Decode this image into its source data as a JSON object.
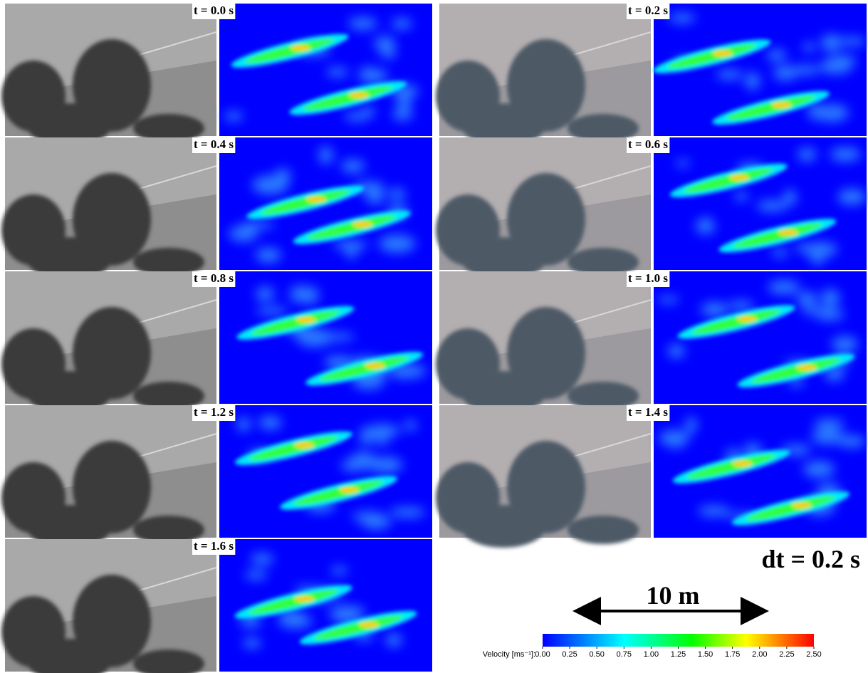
{
  "panels": [
    {
      "label": "t = 0.0 s"
    },
    {
      "label": "t = 0.2 s"
    },
    {
      "label": "t = 0.4 s"
    },
    {
      "label": "t = 0.6 s"
    },
    {
      "label": "t = 0.8 s"
    },
    {
      "label": "t = 1.0 s"
    },
    {
      "label": "t = 1.2 s"
    },
    {
      "label": "t = 1.4 s"
    },
    {
      "label": "t = 1.6 s"
    }
  ],
  "time_step": "dt = 0.2 s",
  "scale_bar": "10 m",
  "colorbar": {
    "label": "Velocity [ms⁻¹]:",
    "lim": [
      0,
      2.5
    ],
    "ticks": [
      {
        "value": 0,
        "label": "0.00"
      },
      {
        "value": 0.25,
        "label": "0.25"
      },
      {
        "value": 0.5,
        "label": "0.50"
      },
      {
        "value": 0.75,
        "label": "0.75"
      },
      {
        "value": 1,
        "label": "1.00"
      },
      {
        "value": 1.25,
        "label": "1.25"
      },
      {
        "value": 1.5,
        "label": "1.50"
      },
      {
        "value": 1.75,
        "label": "1.75"
      },
      {
        "value": 2,
        "label": "2.00"
      },
      {
        "value": 2.25,
        "label": "2.25"
      },
      {
        "value": 2.5,
        "label": "2.50"
      }
    ]
  }
}
